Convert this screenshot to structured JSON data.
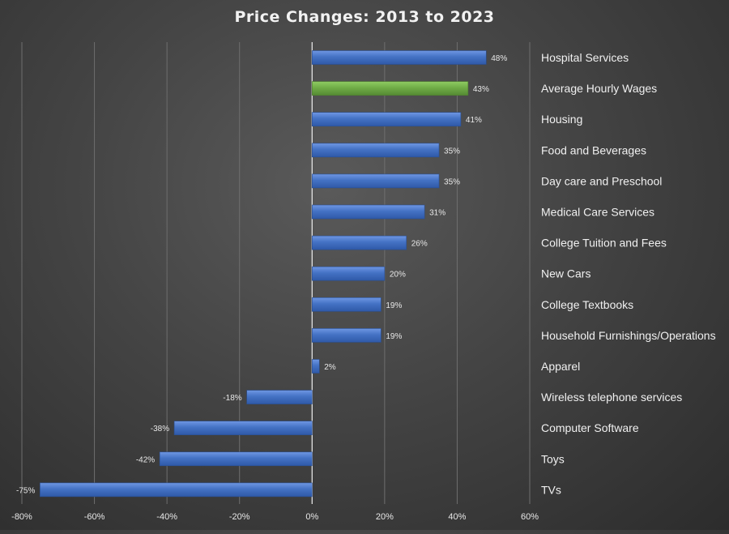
{
  "chart_data": {
    "type": "bar",
    "orientation": "horizontal",
    "title": "Price Changes:  2013 to 2023",
    "xlabel": "",
    "ylabel": "",
    "xlim": [
      -80,
      60
    ],
    "x_ticks": [
      -80,
      -60,
      -40,
      -20,
      0,
      20,
      40,
      60
    ],
    "x_tick_labels": [
      "-80%",
      "-60%",
      "-40%",
      "-20%",
      "0%",
      "20%",
      "40%",
      "60%"
    ],
    "grid": "vertical",
    "legend": "none",
    "category_labels_position": "right",
    "colors": {
      "default": "#4472c4",
      "highlight": "#70ad47",
      "text": "#e8e8e8",
      "grid": "#6e6e6e"
    },
    "categories": [
      "Hospital Services",
      "Average Hourly Wages",
      "Housing",
      "Food and Beverages",
      "Day care and Preschool",
      "Medical Care Services",
      "College Tuition and Fees",
      "New Cars",
      "College Textbooks",
      "Household Furnishings/Operations",
      "Apparel",
      "Wireless telephone services",
      "Computer Software",
      "Toys",
      "TVs"
    ],
    "values": [
      48,
      43,
      41,
      35,
      35,
      31,
      26,
      20,
      19,
      19,
      2,
      -18,
      -38,
      -42,
      -75
    ],
    "value_labels": [
      "48%",
      "43%",
      "41%",
      "35%",
      "35%",
      "31%",
      "26%",
      "20%",
      "19%",
      "19%",
      "2%",
      "-18%",
      "-38%",
      "-42%",
      "-75%"
    ],
    "highlight_category": "Average Hourly Wages"
  }
}
